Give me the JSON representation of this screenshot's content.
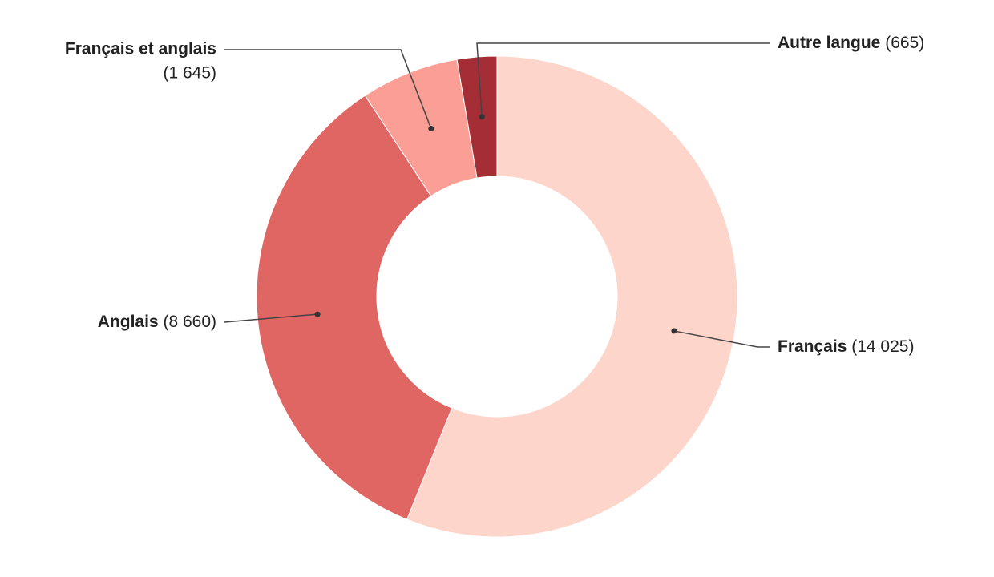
{
  "chart_data": {
    "type": "donut",
    "categories": [
      "Français",
      "Anglais",
      "Français et anglais",
      "Autre langue"
    ],
    "values": [
      14025,
      8660,
      1645,
      665
    ],
    "value_labels": [
      "(14 025)",
      "(8 660)",
      "(1 645)",
      "(665)"
    ],
    "colors": [
      "#fdd5cb",
      "#e06663",
      "#fb9e96",
      "#a52d35"
    ]
  }
}
